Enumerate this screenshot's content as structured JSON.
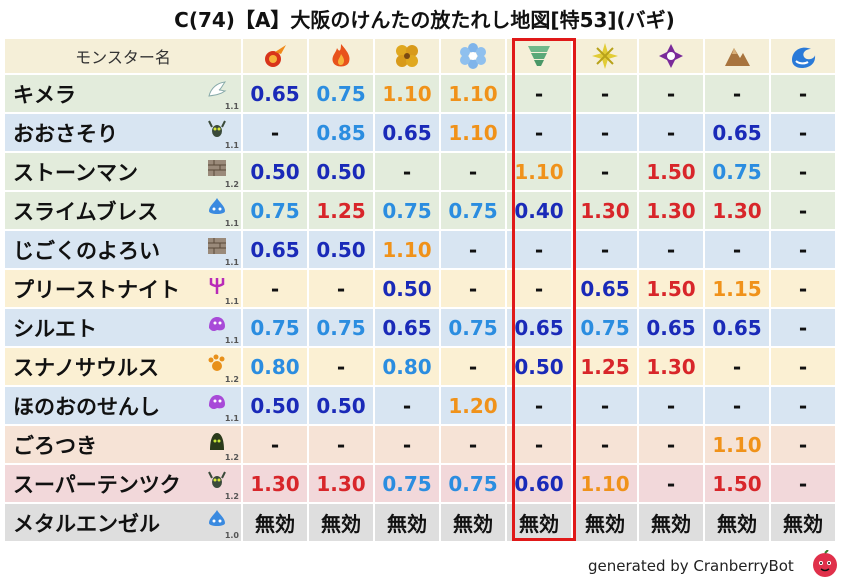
{
  "title": "C(74)【A】大阪のけんたの放たれし地図[特53](バギ)",
  "header": {
    "name_col": "モンスター名",
    "elements": [
      {
        "icon": "fire-icon",
        "color": "#e0451a"
      },
      {
        "icon": "flame-icon",
        "color": "#e8531c"
      },
      {
        "icon": "earth-icon",
        "color": "#d6a020"
      },
      {
        "icon": "ice-icon",
        "color": "#6fa8e0"
      },
      {
        "icon": "wind-icon",
        "color": "#5aa878"
      },
      {
        "icon": "light-icon",
        "color": "#d8c230"
      },
      {
        "icon": "dark-icon",
        "color": "#7a2a9a"
      },
      {
        "icon": "mountain-icon",
        "color": "#9a6a3a"
      },
      {
        "icon": "water-icon",
        "color": "#2a7ad8"
      }
    ]
  },
  "rows": [
    {
      "name": "キメラ",
      "icon": "wing-icon",
      "level": "1.1",
      "bg": "green",
      "values": [
        [
          "0.65",
          "blue"
        ],
        [
          "0.75",
          "lblue"
        ],
        [
          "1.10",
          "orange"
        ],
        [
          "1.10",
          "orange"
        ],
        [
          "-",
          "dash"
        ],
        [
          "-",
          "dash"
        ],
        [
          "-",
          "dash"
        ],
        [
          "-",
          "dash"
        ],
        [
          "-",
          "dash"
        ]
      ]
    },
    {
      "name": "おおさそり",
      "icon": "bug-icon",
      "level": "1.1",
      "bg": "blue",
      "values": [
        [
          "-",
          "dash"
        ],
        [
          "0.85",
          "lblue"
        ],
        [
          "0.65",
          "blue"
        ],
        [
          "1.10",
          "orange"
        ],
        [
          "-",
          "dash"
        ],
        [
          "-",
          "dash"
        ],
        [
          "-",
          "dash"
        ],
        [
          "0.65",
          "blue"
        ],
        [
          "-",
          "dash"
        ]
      ]
    },
    {
      "name": "ストーンマン",
      "icon": "brick-icon",
      "level": "1.2",
      "bg": "green",
      "values": [
        [
          "0.50",
          "blue"
        ],
        [
          "0.50",
          "blue"
        ],
        [
          "-",
          "dash"
        ],
        [
          "-",
          "dash"
        ],
        [
          "1.10",
          "orange"
        ],
        [
          "-",
          "dash"
        ],
        [
          "1.50",
          "red"
        ],
        [
          "0.75",
          "lblue"
        ],
        [
          "-",
          "dash"
        ]
      ]
    },
    {
      "name": "スライムブレス",
      "icon": "slime-icon",
      "level": "1.1",
      "bg": "green",
      "values": [
        [
          "0.75",
          "lblue"
        ],
        [
          "1.25",
          "red"
        ],
        [
          "0.75",
          "lblue"
        ],
        [
          "0.75",
          "lblue"
        ],
        [
          "0.40",
          "blue"
        ],
        [
          "1.30",
          "red"
        ],
        [
          "1.30",
          "red"
        ],
        [
          "1.30",
          "red"
        ],
        [
          "-",
          "dash"
        ]
      ]
    },
    {
      "name": "じごくのよろい",
      "icon": "brick-icon",
      "level": "1.1",
      "bg": "blue",
      "values": [
        [
          "0.65",
          "blue"
        ],
        [
          "0.50",
          "blue"
        ],
        [
          "1.10",
          "orange"
        ],
        [
          "-",
          "dash"
        ],
        [
          "-",
          "dash"
        ],
        [
          "-",
          "dash"
        ],
        [
          "-",
          "dash"
        ],
        [
          "-",
          "dash"
        ],
        [
          "-",
          "dash"
        ]
      ]
    },
    {
      "name": "プリーストナイト",
      "icon": "trident-icon",
      "level": "1.1",
      "bg": "yellow",
      "values": [
        [
          "-",
          "dash"
        ],
        [
          "-",
          "dash"
        ],
        [
          "0.50",
          "blue"
        ],
        [
          "-",
          "dash"
        ],
        [
          "-",
          "dash"
        ],
        [
          "0.65",
          "blue"
        ],
        [
          "1.50",
          "red"
        ],
        [
          "1.15",
          "orange"
        ],
        [
          "-",
          "dash"
        ]
      ]
    },
    {
      "name": "シルエト",
      "icon": "ghost-icon",
      "level": "1.1",
      "bg": "blue",
      "values": [
        [
          "0.75",
          "lblue"
        ],
        [
          "0.75",
          "lblue"
        ],
        [
          "0.65",
          "blue"
        ],
        [
          "0.75",
          "lblue"
        ],
        [
          "0.65",
          "blue"
        ],
        [
          "0.75",
          "lblue"
        ],
        [
          "0.65",
          "blue"
        ],
        [
          "0.65",
          "blue"
        ],
        [
          "-",
          "dash"
        ]
      ]
    },
    {
      "name": "スナノサウルス",
      "icon": "paw-icon",
      "level": "1.2",
      "bg": "yellow",
      "values": [
        [
          "0.80",
          "lblue"
        ],
        [
          "-",
          "dash"
        ],
        [
          "0.80",
          "lblue"
        ],
        [
          "-",
          "dash"
        ],
        [
          "0.50",
          "blue"
        ],
        [
          "1.25",
          "red"
        ],
        [
          "1.30",
          "red"
        ],
        [
          "-",
          "dash"
        ],
        [
          "-",
          "dash"
        ]
      ]
    },
    {
      "name": "ほのおのせんし",
      "icon": "ghost-icon",
      "level": "1.1",
      "bg": "blue",
      "values": [
        [
          "0.50",
          "blue"
        ],
        [
          "0.50",
          "blue"
        ],
        [
          "-",
          "dash"
        ],
        [
          "1.20",
          "orange"
        ],
        [
          "-",
          "dash"
        ],
        [
          "-",
          "dash"
        ],
        [
          "-",
          "dash"
        ],
        [
          "-",
          "dash"
        ],
        [
          "-",
          "dash"
        ]
      ]
    },
    {
      "name": "ごろつき",
      "icon": "hood-icon",
      "level": "1.2",
      "bg": "peach",
      "values": [
        [
          "-",
          "dash"
        ],
        [
          "-",
          "dash"
        ],
        [
          "-",
          "dash"
        ],
        [
          "-",
          "dash"
        ],
        [
          "-",
          "dash"
        ],
        [
          "-",
          "dash"
        ],
        [
          "-",
          "dash"
        ],
        [
          "1.10",
          "orange"
        ],
        [
          "-",
          "dash"
        ]
      ]
    },
    {
      "name": "スーパーテンツク",
      "icon": "bug-icon",
      "level": "1.2",
      "bg": "pink",
      "values": [
        [
          "1.30",
          "red"
        ],
        [
          "1.30",
          "red"
        ],
        [
          "0.75",
          "lblue"
        ],
        [
          "0.75",
          "lblue"
        ],
        [
          "0.60",
          "blue"
        ],
        [
          "1.10",
          "orange"
        ],
        [
          "-",
          "dash"
        ],
        [
          "1.50",
          "red"
        ],
        [
          "-",
          "dash"
        ]
      ]
    },
    {
      "name": "メタルエンゼル",
      "icon": "slime-icon",
      "level": "1.0",
      "bg": "gray",
      "values": [
        [
          "無効",
          "mu"
        ],
        [
          "無効",
          "mu"
        ],
        [
          "無効",
          "mu"
        ],
        [
          "無効",
          "mu"
        ],
        [
          "無効",
          "mu"
        ],
        [
          "無効",
          "mu"
        ],
        [
          "無効",
          "mu"
        ],
        [
          "無効",
          "mu"
        ],
        [
          "無効",
          "mu"
        ]
      ]
    }
  ],
  "footer": {
    "text": "generated by CranberryBot",
    "logo": "cranberry-logo-icon"
  }
}
